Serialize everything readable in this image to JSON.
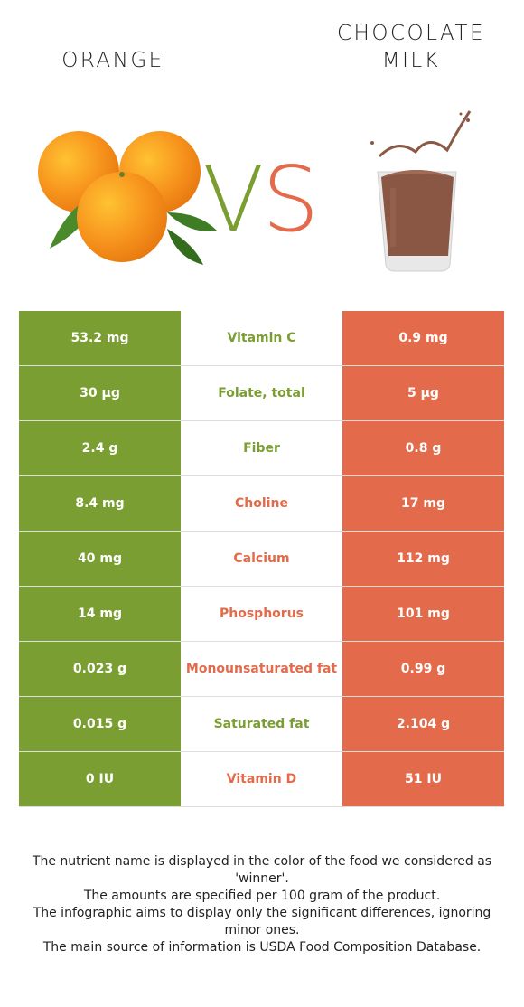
{
  "header": {
    "left_food": "ORANGE",
    "right_food": "CHOCOLATE\nMILK",
    "vs": "VS"
  },
  "colors": {
    "left_food": "#7a9e31",
    "right_food": "#e36b4b"
  },
  "images": {
    "left": "orange-fruit-illustration",
    "right": "chocolate-milk-glass-illustration"
  },
  "rows": [
    {
      "nutrient": "Vitamin C",
      "left": "53.2 mg",
      "right": "0.9 mg",
      "winner": "left"
    },
    {
      "nutrient": "Folate, total",
      "left": "30 µg",
      "right": "5 µg",
      "winner": "left"
    },
    {
      "nutrient": "Fiber",
      "left": "2.4 g",
      "right": "0.8 g",
      "winner": "left"
    },
    {
      "nutrient": "Choline",
      "left": "8.4 mg",
      "right": "17 mg",
      "winner": "right"
    },
    {
      "nutrient": "Calcium",
      "left": "40 mg",
      "right": "112 mg",
      "winner": "right"
    },
    {
      "nutrient": "Phosphorus",
      "left": "14 mg",
      "right": "101 mg",
      "winner": "right"
    },
    {
      "nutrient": "Monounsaturated fat",
      "left": "0.023 g",
      "right": "0.99 g",
      "winner": "right"
    },
    {
      "nutrient": "Saturated fat",
      "left": "0.015 g",
      "right": "2.104 g",
      "winner": "left"
    },
    {
      "nutrient": "Vitamin D",
      "left": "0 IU",
      "right": "51 IU",
      "winner": "right"
    }
  ],
  "footnote": [
    "The nutrient name is displayed in the color of the food we considered as 'winner'.",
    "The amounts are specified per 100 gram of the product.",
    "The infographic aims to display only the significant differences, ignoring minor ones.",
    "The main source of information is USDA Food Composition Database."
  ]
}
